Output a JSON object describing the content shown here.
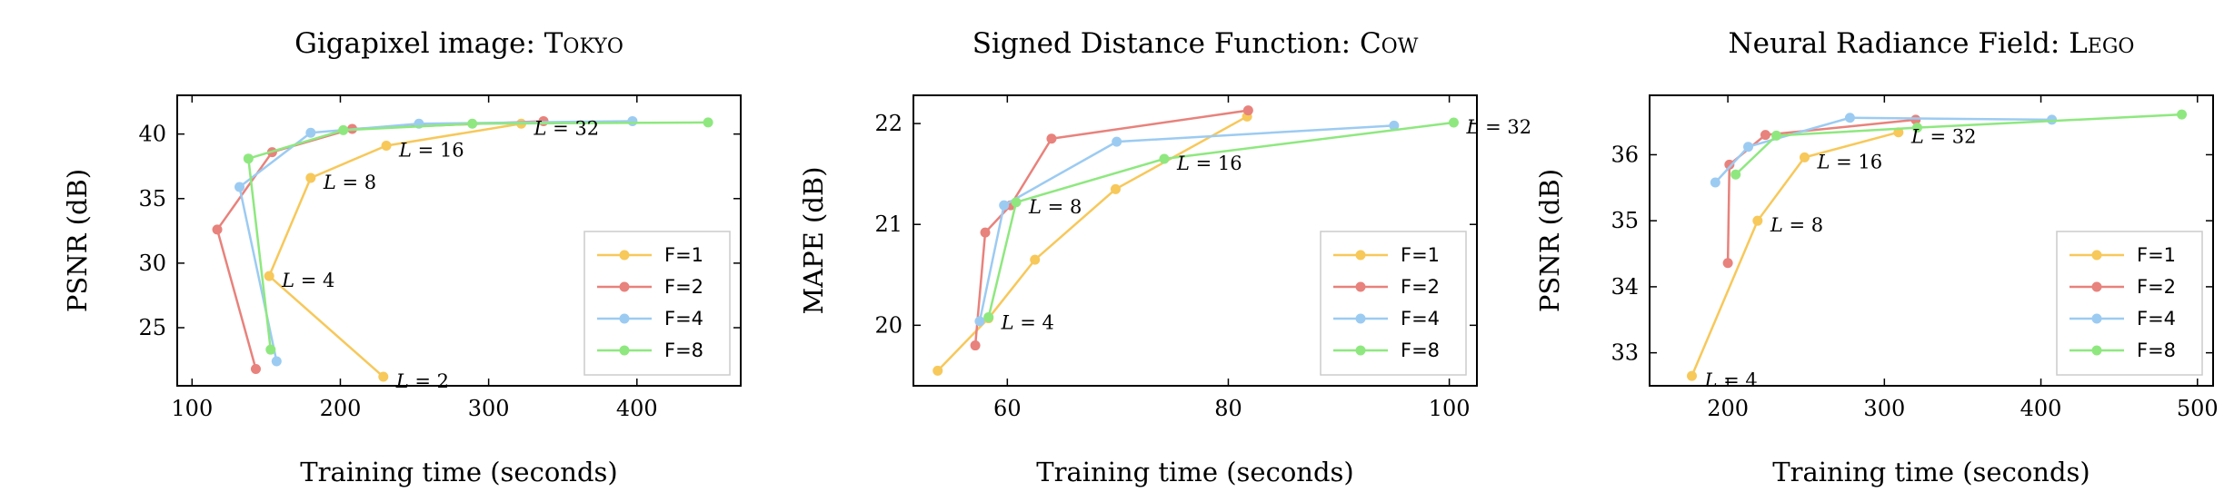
{
  "colors": {
    "F=1": "#f7c85a",
    "F=2": "#e8827c",
    "F=4": "#9ccbf2",
    "F=8": "#8ee87f"
  },
  "chart_data": [
    {
      "type": "line",
      "title": "Gigapixel image: Tokyo",
      "xlabel": "Training time (seconds)",
      "ylabel": "PSNR (dB)",
      "xlim": [
        90,
        470
      ],
      "ylim": [
        20.5,
        43.0
      ],
      "xticks": [
        {
          "v": 100,
          "label": "100"
        },
        {
          "v": 200,
          "label": "200"
        },
        {
          "v": 300,
          "label": "300"
        },
        {
          "v": 400,
          "label": "400"
        }
      ],
      "yticks": [
        {
          "v": 25,
          "label": "25"
        },
        {
          "v": 30,
          "label": "30"
        },
        {
          "v": 35,
          "label": "35"
        },
        {
          "v": 40,
          "label": "40"
        }
      ],
      "legend_position": "bottom-right",
      "series": [
        {
          "name": "F=1",
          "points": [
            [
              229,
              21.2
            ],
            [
              152,
              29.0
            ],
            [
              180,
              36.6
            ],
            [
              231,
              39.1
            ],
            [
              322,
              40.8
            ]
          ]
        },
        {
          "name": "F=2",
          "points": [
            [
              143,
              21.8
            ],
            [
              117,
              32.6
            ],
            [
              154,
              38.6
            ],
            [
              208,
              40.4
            ],
            [
              337,
              41.0
            ]
          ]
        },
        {
          "name": "F=4",
          "points": [
            [
              157,
              22.4
            ],
            [
              132,
              35.9
            ],
            [
              180,
              40.1
            ],
            [
              253,
              40.8
            ],
            [
              397,
              41.0
            ]
          ]
        },
        {
          "name": "F=8",
          "points": [
            [
              153,
              23.3
            ],
            [
              138,
              38.1
            ],
            [
              202,
              40.3
            ],
            [
              289,
              40.8
            ],
            [
              448,
              40.9
            ]
          ]
        }
      ],
      "annotations": [
        {
          "var": "L",
          "text": " = 2",
          "x": 229,
          "y": 21.2
        },
        {
          "var": "L",
          "text": " = 4",
          "x": 152,
          "y": 29.0
        },
        {
          "var": "L",
          "text": " = 8",
          "x": 180,
          "y": 36.6
        },
        {
          "var": "L",
          "text": " = 16",
          "x": 231,
          "y": 39.1
        },
        {
          "var": "L",
          "text": " = 32",
          "x": 322,
          "y": 40.8
        }
      ]
    },
    {
      "type": "line",
      "title": "Signed Distance Function: Cow",
      "xlabel": "Training time (seconds)",
      "ylabel": "MAPE (dB)",
      "xlim": [
        51.5,
        102.5
      ],
      "ylim": [
        19.4,
        22.28
      ],
      "xticks": [
        {
          "v": 60,
          "label": "60"
        },
        {
          "v": 80,
          "label": "80"
        },
        {
          "v": 100,
          "label": "100"
        }
      ],
      "yticks": [
        {
          "v": 20,
          "label": "20"
        },
        {
          "v": 21,
          "label": "21"
        },
        {
          "v": 22,
          "label": "22"
        }
      ],
      "legend_position": "bottom-right",
      "series": [
        {
          "name": "F=1",
          "points": [
            [
              53.7,
              19.55
            ],
            [
              58.3,
              20.07
            ],
            [
              62.5,
              20.65
            ],
            [
              69.8,
              21.35
            ],
            [
              81.7,
              22.07
            ]
          ]
        },
        {
          "name": "F=2",
          "points": [
            [
              57.1,
              19.8
            ],
            [
              58.0,
              20.92
            ],
            [
              60.3,
              21.19
            ],
            [
              64.0,
              21.85
            ],
            [
              81.8,
              22.13
            ]
          ]
        },
        {
          "name": "F=4",
          "points": [
            [
              57.5,
              20.04
            ],
            [
              59.7,
              21.19
            ],
            [
              69.9,
              21.82
            ],
            [
              95.0,
              21.98
            ]
          ]
        },
        {
          "name": "F=8",
          "points": [
            [
              58.3,
              20.08
            ],
            [
              60.8,
              21.22
            ],
            [
              74.2,
              21.65
            ],
            [
              100.4,
              22.01
            ]
          ]
        }
      ],
      "annotations": [
        {
          "var": "L",
          "text": " = 4",
          "x": 58.3,
          "y": 20.07
        },
        {
          "var": "L",
          "text": " = 8",
          "x": 60.8,
          "y": 21.22
        },
        {
          "var": "L",
          "text": " = 16",
          "x": 74.2,
          "y": 21.65
        },
        {
          "var": "L",
          "text": " = 32",
          "x": 100.4,
          "y": 22.01
        }
      ]
    },
    {
      "type": "line",
      "title": "Neural Radiance Field: Lego",
      "xlabel": "Training time (seconds)",
      "ylabel": "PSNR (dB)",
      "xlim": [
        150,
        510
      ],
      "ylim": [
        32.5,
        36.9
      ],
      "xticks": [
        {
          "v": 200,
          "label": "200"
        },
        {
          "v": 300,
          "label": "300"
        },
        {
          "v": 400,
          "label": "400"
        },
        {
          "v": 500,
          "label": "500"
        }
      ],
      "yticks": [
        {
          "v": 33,
          "label": "33"
        },
        {
          "v": 34,
          "label": "34"
        },
        {
          "v": 35,
          "label": "35"
        },
        {
          "v": 36,
          "label": "36"
        }
      ],
      "legend_position": "bottom-right",
      "series": [
        {
          "name": "F=1",
          "points": [
            [
              177,
              32.65
            ],
            [
              219,
              35.0
            ],
            [
              249,
              35.96
            ],
            [
              309,
              36.34
            ]
          ]
        },
        {
          "name": "F=2",
          "points": [
            [
              200,
              34.36
            ],
            [
              201,
              35.85
            ],
            [
              224,
              36.3
            ],
            [
              320,
              36.53
            ]
          ]
        },
        {
          "name": "F=4",
          "points": [
            [
              192,
              35.58
            ],
            [
              213,
              36.12
            ],
            [
              278,
              36.56
            ],
            [
              407,
              36.53
            ]
          ]
        },
        {
          "name": "F=8",
          "points": [
            [
              205,
              35.7
            ],
            [
              231,
              36.29
            ],
            [
              321,
              36.41
            ],
            [
              490,
              36.61
            ]
          ]
        }
      ],
      "annotations": [
        {
          "var": "L",
          "text": " = 4",
          "x": 177,
          "y": 32.65
        },
        {
          "var": "L",
          "text": " = 8",
          "x": 219,
          "y": 35.0
        },
        {
          "var": "L",
          "text": " = 16",
          "x": 249,
          "y": 35.96
        },
        {
          "var": "L",
          "text": " = 32",
          "x": 309,
          "y": 36.34
        }
      ]
    }
  ]
}
